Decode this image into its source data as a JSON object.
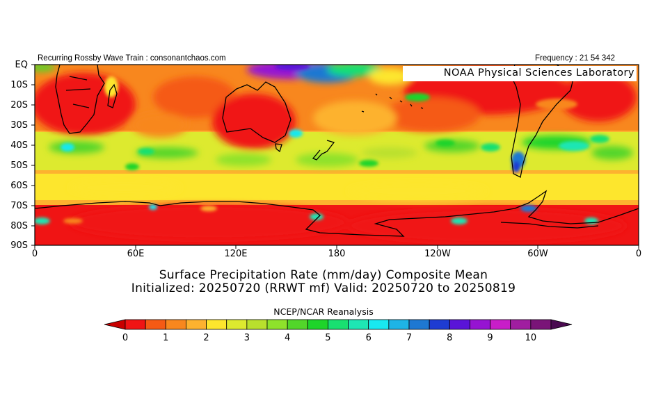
{
  "header": {
    "left_text": "Recurring Rossby Wave Train : consonantchaos.com",
    "right_text": "Frequency : 21 54 342",
    "org_label": "NOAA Physical Sciences Laboratory"
  },
  "titles": {
    "line1": "Surface Precipitation Rate (mm/day) Composite Mean",
    "line2": "Initialized: 20250720 (RRWT mf) Valid: 20250720 to 20250819",
    "source": "NCEP/NCAR Reanalysis"
  },
  "map": {
    "lat_labels": [
      "EQ",
      "10S",
      "20S",
      "30S",
      "40S",
      "50S",
      "60S",
      "70S",
      "80S",
      "90S"
    ],
    "lon_labels": [
      "0",
      "60E",
      "120E",
      "180",
      "120W",
      "60W",
      "0"
    ]
  },
  "colorbar": {
    "labels": [
      "0",
      "1",
      "2",
      "3",
      "4",
      "5",
      "6",
      "7",
      "8",
      "9",
      "10"
    ],
    "colors": [
      "#c80000",
      "#f01414",
      "#f55a14",
      "#f8871e",
      "#fdb22f",
      "#fde62d",
      "#ddea2f",
      "#b9e02d",
      "#8ee22b",
      "#52d62a",
      "#1ed42a",
      "#19e071",
      "#1ee6b4",
      "#19e8f0",
      "#1eb4e6",
      "#1e78d2",
      "#1e3cd2",
      "#5a14d8",
      "#9614d2",
      "#c81ec8",
      "#a01ea0",
      "#7a1478",
      "#4a0a50"
    ]
  }
}
